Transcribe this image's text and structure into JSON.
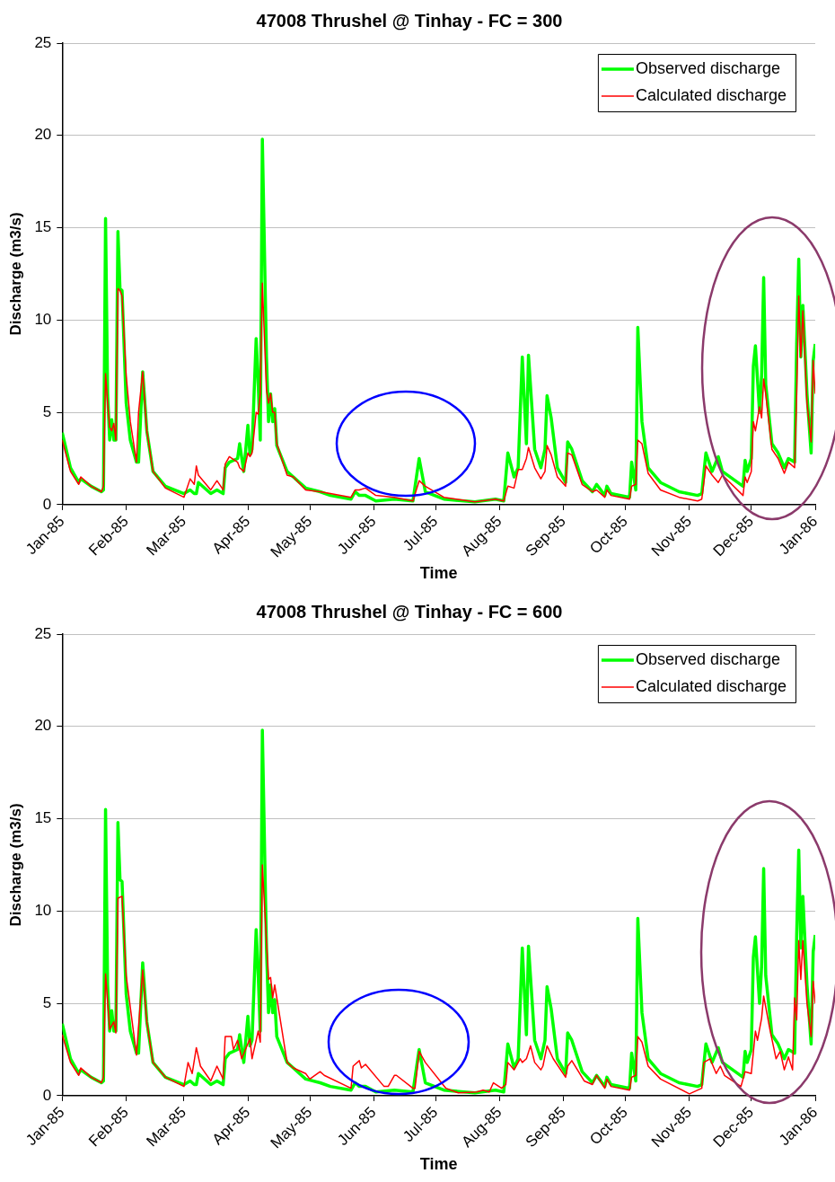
{
  "chart_data": [
    {
      "type": "line",
      "title": "47008 Thrushel @ Tinhay - FC = 300",
      "xlabel": "Time",
      "ylabel": "Discharge (m3/s)",
      "legend": "top right",
      "grid": "y",
      "xlim": [
        "1985-01-01",
        "1986-01-01"
      ],
      "ylim": [
        0,
        25
      ],
      "yticks": [
        0,
        5,
        10,
        15,
        20,
        25
      ],
      "xticks": [
        {
          "value": "1985-01-01",
          "label": "Jan-85"
        },
        {
          "value": "1985-02-01",
          "label": "Feb-85"
        },
        {
          "value": "1985-03-01",
          "label": "Mar-85"
        },
        {
          "value": "1985-04-01",
          "label": "Apr-85"
        },
        {
          "value": "1985-05-01",
          "label": "May-85"
        },
        {
          "value": "1985-06-01",
          "label": "Jun-85"
        },
        {
          "value": "1985-07-01",
          "label": "Jul-85"
        },
        {
          "value": "1985-08-01",
          "label": "Aug-85"
        },
        {
          "value": "1985-09-01",
          "label": "Sep-85"
        },
        {
          "value": "1985-10-01",
          "label": "Oct-85"
        },
        {
          "value": "1985-11-01",
          "label": "Nov-85"
        },
        {
          "value": "1985-12-01",
          "label": "Dec-85"
        },
        {
          "value": "1986-01-01",
          "label": "Jan-86"
        }
      ],
      "x": [
        "1985-01-01",
        "1985-01-05",
        "1985-01-09",
        "1985-01-10",
        "1985-01-15",
        "1985-01-20",
        "1985-01-21",
        "1985-01-22",
        "1985-01-23",
        "1985-01-24",
        "1985-01-25",
        "1985-01-26",
        "1985-01-27",
        "1985-01-28",
        "1985-01-29",
        "1985-01-30",
        "1985-02-01",
        "1985-02-03",
        "1985-02-06",
        "1985-02-07",
        "1985-02-09",
        "1985-02-11",
        "1985-02-14",
        "1985-02-20",
        "1985-03-01",
        "1985-03-04",
        "1985-03-06",
        "1985-03-07",
        "1985-03-08",
        "1985-03-14",
        "1985-03-17",
        "1985-03-20",
        "1985-03-21",
        "1985-03-23",
        "1985-03-27",
        "1985-03-28",
        "1985-03-30",
        "1985-04-01",
        "1985-04-02",
        "1985-04-03",
        "1985-04-05",
        "1985-04-06",
        "1985-04-07",
        "1985-04-08",
        "1985-04-10",
        "1985-04-11",
        "1985-04-12",
        "1985-04-13",
        "1985-04-14",
        "1985-04-15",
        "1985-04-20",
        "1985-04-23",
        "1985-04-29",
        "1985-05-06",
        "1985-05-11",
        "1985-05-21",
        "1985-05-23",
        "1985-05-25",
        "1985-05-28",
        "1985-06-02",
        "1985-06-11",
        "1985-06-20",
        "1985-06-23",
        "1985-06-26",
        "1985-07-05",
        "1985-07-20",
        "1985-07-30",
        "1985-08-03",
        "1985-08-05",
        "1985-08-08",
        "1985-08-10",
        "1985-08-12",
        "1985-08-14",
        "1985-08-15",
        "1985-08-18",
        "1985-08-21",
        "1985-08-23",
        "1985-08-24",
        "1985-08-26",
        "1985-08-29",
        "1985-09-02",
        "1985-09-03",
        "1985-09-05",
        "1985-09-10",
        "1985-09-15",
        "1985-09-17",
        "1985-09-21",
        "1985-09-22",
        "1985-09-24",
        "1985-10-03",
        "1985-10-04",
        "1985-10-06",
        "1985-10-07",
        "1985-10-09",
        "1985-10-12",
        "1985-10-18",
        "1985-10-27",
        "1985-11-05",
        "1985-11-07",
        "1985-11-09",
        "1985-11-12",
        "1985-11-15",
        "1985-11-17",
        "1985-11-27",
        "1985-11-28",
        "1985-11-29",
        "1985-12-01",
        "1985-12-02",
        "1985-12-03",
        "1985-12-05",
        "1985-12-06",
        "1985-12-07",
        "1985-12-08",
        "1985-12-11",
        "1985-12-14",
        "1985-12-17",
        "1985-12-19",
        "1985-12-22",
        "1985-12-23",
        "1985-12-24",
        "1985-12-25",
        "1985-12-26",
        "1985-12-28",
        "1985-12-30",
        "1985-12-31",
        "1986-01-01"
      ],
      "series": [
        {
          "name": "Observed discharge",
          "color": "#00ff00",
          "values": [
            3.9,
            2.0,
            1.2,
            1.4,
            1.0,
            0.7,
            0.8,
            15.5,
            6.0,
            3.5,
            4.6,
            3.5,
            3.5,
            14.8,
            11.7,
            11.6,
            5.5,
            3.5,
            2.3,
            2.3,
            7.2,
            4.0,
            1.8,
            1.0,
            0.6,
            0.8,
            0.6,
            0.6,
            1.2,
            0.6,
            0.8,
            0.6,
            2.0,
            2.3,
            2.5,
            3.3,
            1.8,
            4.3,
            2.7,
            3.0,
            9.0,
            6.5,
            3.5,
            19.8,
            8.0,
            4.5,
            6.0,
            4.5,
            5.2,
            3.2,
            1.8,
            1.5,
            0.9,
            0.7,
            0.5,
            0.3,
            0.7,
            0.5,
            0.5,
            0.2,
            0.3,
            0.2,
            2.5,
            0.7,
            0.3,
            0.15,
            0.3,
            0.2,
            2.8,
            1.5,
            2.0,
            8.0,
            3.3,
            8.1,
            3.0,
            2.0,
            3.0,
            5.9,
            4.7,
            2.0,
            1.2,
            3.4,
            3.0,
            1.3,
            0.7,
            1.1,
            0.5,
            1.0,
            0.6,
            0.4,
            2.3,
            0.8,
            9.6,
            4.5,
            2.0,
            1.2,
            0.7,
            0.5,
            0.6,
            2.8,
            1.8,
            2.6,
            1.8,
            1.0,
            2.4,
            1.8,
            2.5,
            7.5,
            8.6,
            5.0,
            7.0,
            12.3,
            6.5,
            3.3,
            2.8,
            2.0,
            2.5,
            2.3,
            8.7,
            13.3,
            8.0,
            10.8,
            6.0,
            2.8,
            7.8,
            8.7
          ]
        },
        {
          "name": "Calculated discharge",
          "color": "#ff0000",
          "values": [
            3.5,
            1.8,
            1.1,
            1.5,
            1.0,
            0.7,
            1.0,
            7.1,
            5.5,
            4.2,
            4.0,
            4.4,
            3.5,
            11.7,
            11.6,
            11.3,
            7.0,
            4.5,
            2.3,
            5.0,
            7.2,
            4.0,
            1.8,
            0.9,
            0.4,
            1.4,
            1.1,
            2.1,
            1.6,
            0.8,
            1.3,
            0.8,
            2.2,
            2.6,
            2.3,
            2.0,
            1.8,
            2.8,
            2.6,
            2.8,
            5.0,
            4.9,
            6.0,
            12.0,
            6.2,
            5.5,
            6.0,
            5.0,
            5.0,
            3.3,
            1.6,
            1.5,
            0.8,
            0.7,
            0.6,
            0.4,
            0.8,
            0.8,
            0.9,
            0.5,
            0.4,
            0.2,
            1.3,
            1.0,
            0.4,
            0.15,
            0.3,
            0.2,
            1.0,
            0.9,
            1.9,
            1.9,
            2.5,
            3.1,
            2.0,
            1.4,
            1.8,
            3.2,
            2.7,
            1.5,
            1.0,
            2.8,
            2.7,
            1.1,
            0.7,
            0.8,
            0.4,
            0.8,
            0.5,
            0.3,
            1.0,
            1.1,
            3.5,
            3.3,
            1.7,
            0.8,
            0.4,
            0.2,
            0.3,
            2.1,
            1.6,
            1.2,
            1.6,
            0.5,
            1.5,
            1.2,
            1.8,
            4.5,
            4.0,
            5.3,
            4.7,
            6.8,
            6.0,
            3.0,
            2.5,
            1.7,
            2.3,
            2.0,
            6.0,
            11.3,
            8.0,
            10.5,
            5.5,
            3.4,
            7.8,
            6.0
          ]
        }
      ]
    },
    {
      "type": "line",
      "title": "47008 Thrushel @ Tinhay - FC = 600",
      "xlabel": "Time",
      "ylabel": "Discharge (m3/s)",
      "legend": "top right",
      "grid": "y",
      "xlim": [
        "1985-01-01",
        "1986-01-01"
      ],
      "ylim": [
        0,
        25
      ],
      "yticks": [
        0,
        5,
        10,
        15,
        20,
        25
      ],
      "xticks": [
        {
          "value": "1985-01-01",
          "label": "Jan-85"
        },
        {
          "value": "1985-02-01",
          "label": "Feb-85"
        },
        {
          "value": "1985-03-01",
          "label": "Mar-85"
        },
        {
          "value": "1985-04-01",
          "label": "Apr-85"
        },
        {
          "value": "1985-05-01",
          "label": "May-85"
        },
        {
          "value": "1985-06-01",
          "label": "Jun-85"
        },
        {
          "value": "1985-07-01",
          "label": "Jul-85"
        },
        {
          "value": "1985-08-01",
          "label": "Aug-85"
        },
        {
          "value": "1985-09-01",
          "label": "Sep-85"
        },
        {
          "value": "1985-10-01",
          "label": "Oct-85"
        },
        {
          "value": "1985-11-01",
          "label": "Nov-85"
        },
        {
          "value": "1985-12-01",
          "label": "Dec-85"
        },
        {
          "value": "1986-01-01",
          "label": "Jan-86"
        }
      ],
      "x": [
        "1985-01-01",
        "1985-01-05",
        "1985-01-09",
        "1985-01-10",
        "1985-01-15",
        "1985-01-20",
        "1985-01-21",
        "1985-01-22",
        "1985-01-23",
        "1985-01-24",
        "1985-01-25",
        "1985-01-26",
        "1985-01-27",
        "1985-01-28",
        "1985-01-29",
        "1985-01-30",
        "1985-02-01",
        "1985-02-03",
        "1985-02-06",
        "1985-02-07",
        "1985-02-09",
        "1985-02-11",
        "1985-02-14",
        "1985-02-20",
        "1985-03-01",
        "1985-03-04",
        "1985-03-06",
        "1985-03-07",
        "1985-03-08",
        "1985-03-14",
        "1985-03-17",
        "1985-03-20",
        "1985-03-21",
        "1985-03-23",
        "1985-03-27",
        "1985-03-28",
        "1985-03-30",
        "1985-04-01",
        "1985-04-02",
        "1985-04-03",
        "1985-04-05",
        "1985-04-06",
        "1985-04-07",
        "1985-04-08",
        "1985-04-10",
        "1985-04-11",
        "1985-04-12",
        "1985-04-13",
        "1985-04-14",
        "1985-04-15",
        "1985-04-20",
        "1985-04-23",
        "1985-04-29",
        "1985-05-06",
        "1985-05-11",
        "1985-05-21",
        "1985-05-23",
        "1985-05-25",
        "1985-05-28",
        "1985-06-02",
        "1985-06-11",
        "1985-06-20",
        "1985-06-23",
        "1985-06-26",
        "1985-07-05",
        "1985-07-20",
        "1985-07-30",
        "1985-08-03",
        "1985-08-05",
        "1985-08-08",
        "1985-08-10",
        "1985-08-12",
        "1985-08-14",
        "1985-08-15",
        "1985-08-18",
        "1985-08-21",
        "1985-08-23",
        "1985-08-24",
        "1985-08-26",
        "1985-08-29",
        "1985-09-02",
        "1985-09-03",
        "1985-09-05",
        "1985-09-10",
        "1985-09-15",
        "1985-09-17",
        "1985-09-21",
        "1985-09-22",
        "1985-09-24",
        "1985-10-03",
        "1985-10-04",
        "1985-10-06",
        "1985-10-07",
        "1985-10-09",
        "1985-10-12",
        "1985-10-18",
        "1985-10-27",
        "1985-11-05",
        "1985-11-07",
        "1985-11-09",
        "1985-11-12",
        "1985-11-15",
        "1985-11-17",
        "1985-11-27",
        "1985-11-28",
        "1985-11-29",
        "1985-12-01",
        "1985-12-02",
        "1985-12-03",
        "1985-12-05",
        "1985-12-06",
        "1985-12-07",
        "1985-12-08",
        "1985-12-11",
        "1985-12-14",
        "1985-12-17",
        "1985-12-19",
        "1985-12-22",
        "1985-12-23",
        "1985-12-24",
        "1985-12-25",
        "1985-12-26",
        "1985-12-28",
        "1985-12-30",
        "1985-12-31",
        "1986-01-01"
      ],
      "series": [
        {
          "name": "Observed discharge",
          "color": "#00ff00",
          "values": [
            3.9,
            2.0,
            1.2,
            1.4,
            1.0,
            0.7,
            0.8,
            15.5,
            6.0,
            3.5,
            4.6,
            3.5,
            3.5,
            14.8,
            11.7,
            11.6,
            5.5,
            3.5,
            2.3,
            2.3,
            7.2,
            4.0,
            1.8,
            1.0,
            0.6,
            0.8,
            0.6,
            0.6,
            1.2,
            0.6,
            0.8,
            0.6,
            2.0,
            2.3,
            2.5,
            3.3,
            1.8,
            4.3,
            2.7,
            3.0,
            9.0,
            6.5,
            3.5,
            19.8,
            8.0,
            4.5,
            6.0,
            4.5,
            5.2,
            3.2,
            1.8,
            1.5,
            0.9,
            0.7,
            0.5,
            0.3,
            0.7,
            0.5,
            0.5,
            0.2,
            0.3,
            0.2,
            2.5,
            0.7,
            0.3,
            0.15,
            0.3,
            0.2,
            2.8,
            1.5,
            2.0,
            8.0,
            3.3,
            8.1,
            3.0,
            2.0,
            3.0,
            5.9,
            4.7,
            2.0,
            1.2,
            3.4,
            3.0,
            1.3,
            0.7,
            1.1,
            0.5,
            1.0,
            0.6,
            0.4,
            2.3,
            0.8,
            9.6,
            4.5,
            2.0,
            1.2,
            0.7,
            0.5,
            0.6,
            2.8,
            1.8,
            2.6,
            1.8,
            1.0,
            2.4,
            1.8,
            2.5,
            7.5,
            8.6,
            5.0,
            7.0,
            12.3,
            6.5,
            3.3,
            2.8,
            2.0,
            2.5,
            2.3,
            8.7,
            13.3,
            8.0,
            10.8,
            6.0,
            2.8,
            7.8,
            8.7
          ]
        },
        {
          "name": "Calculated discharge",
          "color": "#ff0000",
          "x": [
            "1985-01-01",
            "1985-01-05",
            "1985-01-09",
            "1985-01-10",
            "1985-01-15",
            "1985-01-20",
            "1985-01-21",
            "1985-01-22",
            "1985-01-24",
            "1985-01-26",
            "1985-01-27",
            "1985-01-28",
            "1985-01-30",
            "1985-02-01",
            "1985-02-06",
            "1985-02-09",
            "1985-02-11",
            "1985-02-14",
            "1985-02-20",
            "1985-03-01",
            "1985-03-03",
            "1985-03-05",
            "1985-03-07",
            "1985-03-09",
            "1985-03-14",
            "1985-03-17",
            "1985-03-20",
            "1985-03-21",
            "1985-03-24",
            "1985-03-25",
            "1985-03-27",
            "1985-03-29",
            "1985-04-02",
            "1985-04-03",
            "1985-04-06",
            "1985-04-07",
            "1985-04-08",
            "1985-04-11",
            "1985-04-12",
            "1985-04-13",
            "1985-04-14",
            "1985-04-20",
            "1985-04-23",
            "1985-04-29",
            "1985-05-01",
            "1985-05-06",
            "1985-05-08",
            "1985-05-21",
            "1985-05-22",
            "1985-05-25",
            "1985-05-26",
            "1985-05-28",
            "1985-06-06",
            "1985-06-08",
            "1985-06-11",
            "1985-06-12",
            "1985-06-20",
            "1985-06-21",
            "1985-06-23",
            "1985-06-26",
            "1985-07-06",
            "1985-07-12",
            "1985-07-21",
            "1985-07-24",
            "1985-07-27",
            "1985-07-29",
            "1985-08-02",
            "1985-08-04",
            "1985-08-05",
            "1985-08-08",
            "1985-08-11",
            "1985-08-12",
            "1985-08-14",
            "1985-08-16",
            "1985-08-18",
            "1985-08-21",
            "1985-08-22",
            "1985-08-24",
            "1985-08-27",
            "1985-09-02",
            "1985-09-03",
            "1985-09-05",
            "1985-09-11",
            "1985-09-15",
            "1985-09-17",
            "1985-09-21",
            "1985-09-22",
            "1985-09-24",
            "1985-10-03",
            "1985-10-04",
            "1985-10-06",
            "1985-10-07",
            "1985-10-09",
            "1985-10-12",
            "1985-10-18",
            "1985-11-01",
            "1985-11-07",
            "1985-11-08",
            "1985-11-11",
            "1985-11-14",
            "1985-11-16",
            "1985-11-18",
            "1985-11-26",
            "1985-11-28",
            "1985-12-01",
            "1985-12-03",
            "1985-12-04",
            "1985-12-06",
            "1985-12-07",
            "1985-12-10",
            "1985-12-13",
            "1985-12-15",
            "1985-12-17",
            "1985-12-19",
            "1985-12-21",
            "1985-12-22",
            "1985-12-23",
            "1985-12-24",
            "1985-12-25",
            "1985-12-26",
            "1985-12-28",
            "1985-12-30",
            "1985-12-31",
            "1986-01-01"
          ],
          "values": [
            3.3,
            1.8,
            1.1,
            1.5,
            1.0,
            0.7,
            1.0,
            6.6,
            3.6,
            4.0,
            3.4,
            10.7,
            10.8,
            6.5,
            2.2,
            6.8,
            4.0,
            1.8,
            1.0,
            0.5,
            1.8,
            1.2,
            2.6,
            1.6,
            0.8,
            1.6,
            0.9,
            3.2,
            3.2,
            2.5,
            3.0,
            2.0,
            3.1,
            2.0,
            3.5,
            2.9,
            12.5,
            6.3,
            6.4,
            5.3,
            6.0,
            1.8,
            1.5,
            1.2,
            0.9,
            1.3,
            1.1,
            0.4,
            1.6,
            1.9,
            1.5,
            1.7,
            0.5,
            0.5,
            1.1,
            1.1,
            0.4,
            0.4,
            2.4,
            1.8,
            0.4,
            0.15,
            0.2,
            0.3,
            0.2,
            0.7,
            0.4,
            0.6,
            1.8,
            1.4,
            2.0,
            1.8,
            2.0,
            2.7,
            1.8,
            1.4,
            1.6,
            2.7,
            2.0,
            1.0,
            1.6,
            1.9,
            0.8,
            0.6,
            1.1,
            0.4,
            0.9,
            0.5,
            0.3,
            1.0,
            1.1,
            3.2,
            2.9,
            1.6,
            0.9,
            0.1,
            0.4,
            1.8,
            2.0,
            1.2,
            1.6,
            1.1,
            0.5,
            1.3,
            1.2,
            3.5,
            3.0,
            4.2,
            5.4,
            3.6,
            2.0,
            2.4,
            1.4,
            2.1,
            1.4,
            5.3,
            4.1,
            8.4,
            6.3,
            8.4,
            5.0,
            3.2,
            6.2,
            5.0
          ]
        }
      ]
    }
  ]
}
